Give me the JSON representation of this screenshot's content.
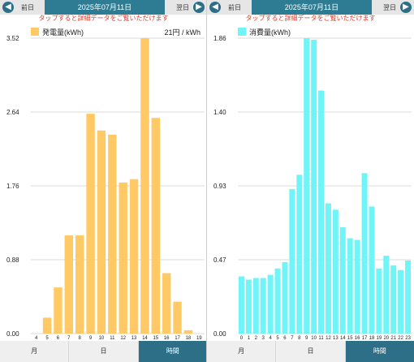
{
  "colors": {
    "accent": "#2d6f86",
    "gen_bar": "#ffca66",
    "use_bar": "#6ff4f8",
    "hint": "#e03b2a"
  },
  "left": {
    "nav": {
      "prev_label": "前日",
      "next_label": "翌日",
      "date": "2025年07月11日",
      "prev_icon": "left-arrow-icon",
      "next_icon": "right-arrow-icon"
    },
    "hint": "タップすると詳細データをご覧いただけます",
    "legend": "発電量(kWh)",
    "rate": "21円 / kWh",
    "tabs": [
      {
        "label": "月"
      },
      {
        "label": "日"
      },
      {
        "label": "時間"
      }
    ],
    "active_tab": 2
  },
  "right": {
    "nav": {
      "prev_label": "前日",
      "next_label": "翌日",
      "date": "2025年07月11日",
      "prev_icon": "left-arrow-icon",
      "next_icon": "right-arrow-icon"
    },
    "hint": "タップすると詳細データをご覧いただけます",
    "legend": "消費量(kWh)",
    "tabs": [
      {
        "label": "月"
      },
      {
        "label": "日"
      },
      {
        "label": "時間"
      }
    ],
    "active_tab": 2
  },
  "chart_data": [
    {
      "type": "bar",
      "ylabel": "発電量(kWh)",
      "ylim": [
        0,
        3.52
      ],
      "yticks": [
        "0.00",
        "0.88",
        "1.76",
        "2.64",
        "3.52"
      ],
      "categories": [
        "4",
        "5",
        "6",
        "7",
        "8",
        "9",
        "10",
        "11",
        "12",
        "13",
        "14",
        "15",
        "16",
        "17",
        "18",
        "19"
      ],
      "values": [
        0,
        0.19,
        0.55,
        1.17,
        1.17,
        2.62,
        2.42,
        2.37,
        1.8,
        1.84,
        3.52,
        2.57,
        0.72,
        0.38,
        0.04,
        0
      ],
      "grid": true
    },
    {
      "type": "bar",
      "ylabel": "消費量(kWh)",
      "ylim": [
        0,
        1.86
      ],
      "yticks": [
        "0.00",
        "0.47",
        "0.93",
        "1.40",
        "1.86"
      ],
      "categories": [
        "0",
        "1",
        "2",
        "3",
        "4",
        "5",
        "6",
        "7",
        "8",
        "9",
        "10",
        "11",
        "12",
        "13",
        "14",
        "15",
        "16",
        "17",
        "18",
        "19",
        "20",
        "21",
        "22",
        "23"
      ],
      "values": [
        0.36,
        0.34,
        0.35,
        0.35,
        0.37,
        0.41,
        0.45,
        0.91,
        1.0,
        1.86,
        1.85,
        1.53,
        0.82,
        0.78,
        0.67,
        0.6,
        0.59,
        1.01,
        0.8,
        0.41,
        0.49,
        0.43,
        0.4,
        0.46
      ],
      "grid": true
    }
  ]
}
